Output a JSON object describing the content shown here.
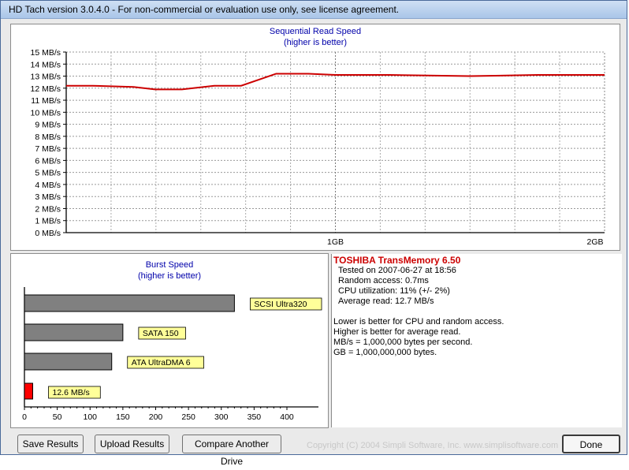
{
  "window": {
    "title": "HD Tach version 3.0.4.0  - For non-commercial or evaluation use only, see license agreement."
  },
  "read_chart": {
    "title_line1": "Sequential Read Speed",
    "title_line2": "(higher is better)",
    "y_ticks": [
      "0 MB/s",
      "1 MB/s",
      "2 MB/s",
      "3 MB/s",
      "4 MB/s",
      "5 MB/s",
      "6 MB/s",
      "7 MB/s",
      "8 MB/s",
      "9 MB/s",
      "10 MB/s",
      "11 MB/s",
      "12 MB/s",
      "13 MB/s",
      "14 MB/s",
      "15 MB/s"
    ],
    "x_ticks": [
      "1GB",
      "2GB"
    ]
  },
  "burst_chart": {
    "title_line1": "Burst Speed",
    "title_line2": "(higher is better)",
    "x_ticks": [
      "0",
      "50",
      "100",
      "150",
      "200",
      "250",
      "300",
      "350",
      "400"
    ]
  },
  "chart_data": [
    {
      "type": "line",
      "title": "Sequential Read Speed",
      "subtitle": "(higher is better)",
      "xlabel": "",
      "ylabel": "",
      "ylim": [
        0,
        15
      ],
      "xlim": [
        0,
        2
      ],
      "x_unit": "GB",
      "grid": true,
      "series": [
        {
          "color": "#cc0000",
          "x": [
            0,
            0.1,
            0.25,
            0.33,
            0.43,
            0.55,
            0.65,
            0.78,
            0.9,
            1.0,
            1.2,
            1.5,
            1.75,
            1.95,
            2.0
          ],
          "y": [
            12.2,
            12.2,
            12.1,
            11.9,
            11.9,
            12.2,
            12.2,
            13.2,
            13.2,
            13.1,
            13.1,
            13.0,
            13.1,
            13.1,
            13.1
          ]
        }
      ]
    },
    {
      "type": "bar",
      "orientation": "horizontal",
      "title": "Burst Speed",
      "subtitle": "(higher is better)",
      "xlim": [
        0,
        400
      ],
      "categories": [
        "SCSI Ultra320",
        "SATA 150",
        "ATA UltraDMA 6",
        "12.6 MB/s"
      ],
      "values": [
        320,
        150,
        133,
        12.6
      ],
      "colors": [
        "#808080",
        "#808080",
        "#808080",
        "#ff0000"
      ]
    }
  ],
  "info": {
    "drive": "TOSHIBA TransMemory 6.50",
    "tested": "Tested on 2007-06-27 at 18:56",
    "random_access": "Random access: 0.7ms",
    "cpu": "CPU utilization: 11% (+/- 2%)",
    "average_read": "Average read: 12.7 MB/s",
    "note1": "Lower is better for CPU and random access.",
    "note2": "Higher is better for average read.",
    "note3": "MB/s = 1,000,000 bytes per second.",
    "note4": "GB = 1,000,000,000 bytes."
  },
  "buttons": {
    "save": "Save Results",
    "upload": "Upload Results",
    "compare": "Compare Another Drive",
    "done": "Done"
  },
  "copyright": "Copyright (C) 2004 Simpli Software, Inc. www.simplisoftware.com"
}
